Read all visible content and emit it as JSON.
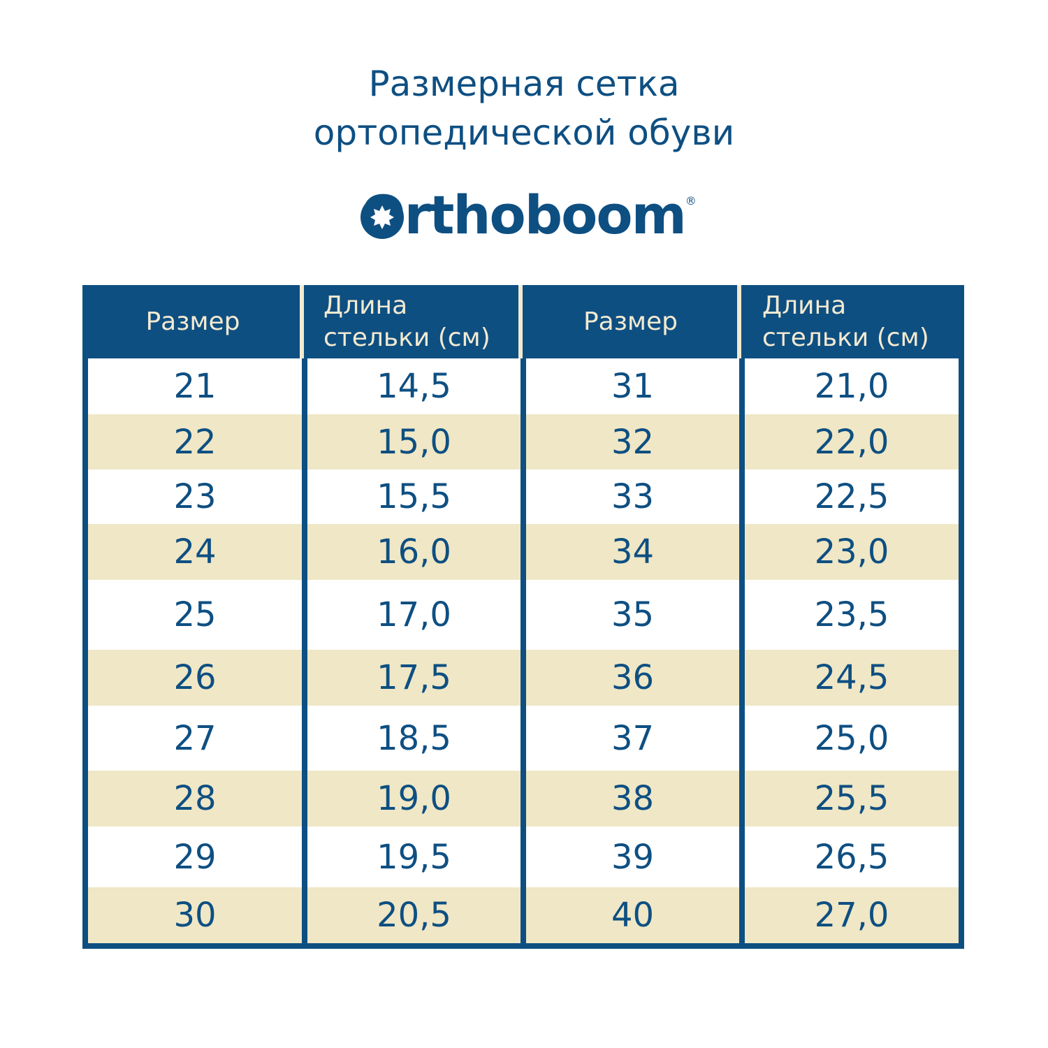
{
  "title_line1": "Размерная сетка",
  "title_line2": "ортопедической обуви",
  "brand": {
    "name": "Orthoboom",
    "registered": "®"
  },
  "colors": {
    "navy": "#0e4f82",
    "cream": "#efe7c5",
    "header_text": "#f3ead0"
  },
  "table": {
    "headers": [
      "Размер",
      "Длина стельки (см)",
      "Размер",
      "Длина стельки (см)"
    ],
    "rows": [
      [
        "21",
        "14,5",
        "31",
        "21,0"
      ],
      [
        "22",
        "15,0",
        "32",
        "22,0"
      ],
      [
        "23",
        "15,5",
        "33",
        "22,5"
      ],
      [
        "24",
        "16,0",
        "34",
        "23,0"
      ],
      [
        "25",
        "17,0",
        "35",
        "23,5"
      ],
      [
        "26",
        "17,5",
        "36",
        "24,5"
      ],
      [
        "27",
        "18,5",
        "37",
        "25,0"
      ],
      [
        "28",
        "19,0",
        "38",
        "25,5"
      ],
      [
        "29",
        "19,5",
        "39",
        "26,5"
      ],
      [
        "30",
        "20,5",
        "40",
        "27,0"
      ]
    ]
  }
}
